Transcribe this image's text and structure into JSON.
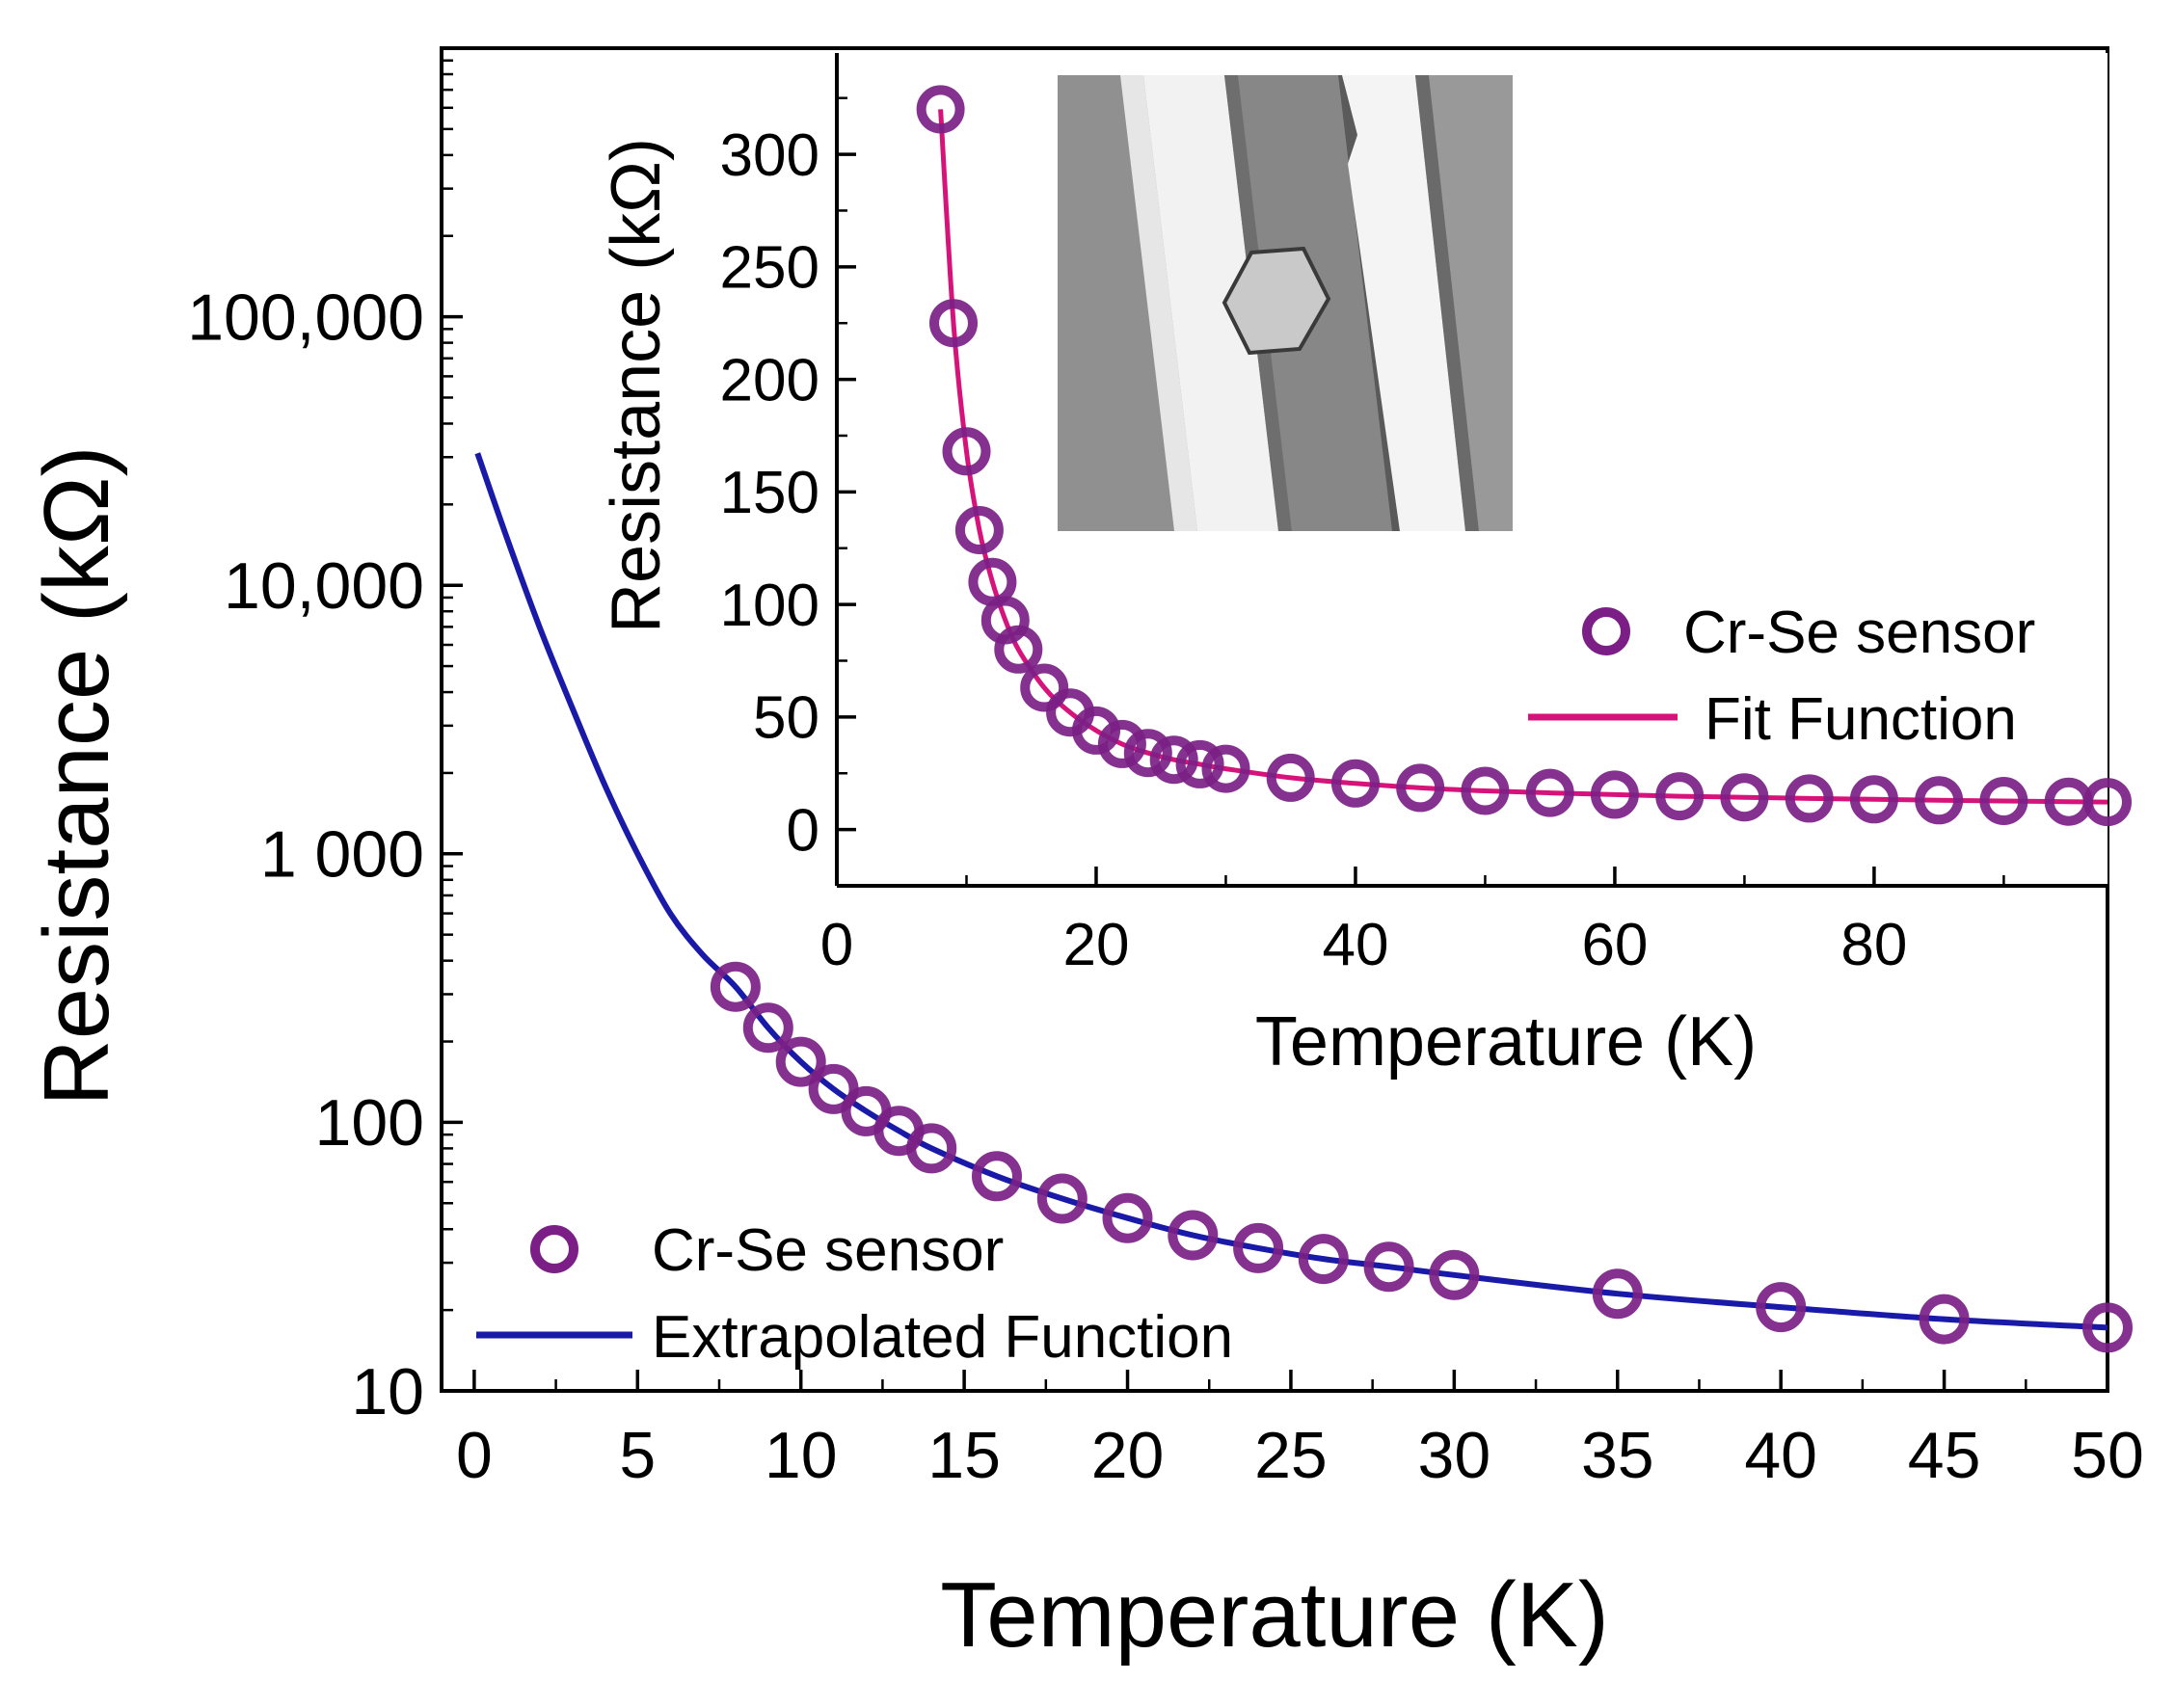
{
  "chart_data": [
    {
      "id": "main",
      "type": "scatter",
      "title": "",
      "xlabel": "Temperature (K)",
      "ylabel": "Resistance (kΩ)",
      "xscale": "linear",
      "yscale": "log",
      "xlim": [
        -1,
        50
      ],
      "ylim": [
        10,
        1000000
      ],
      "xticks": [
        0,
        5,
        10,
        15,
        20,
        25,
        30,
        35,
        40,
        45,
        50
      ],
      "xtick_labels": [
        "0",
        "5",
        "10",
        "15",
        "20",
        "25",
        "30",
        "35",
        "40",
        "45",
        "50"
      ],
      "yticks": [
        10,
        100,
        1000,
        10000,
        100000
      ],
      "ytick_labels": [
        "10",
        "100",
        "1 000",
        "10,000",
        "100,000"
      ],
      "legend_position": "bottom-left",
      "series": [
        {
          "name": "Cr-Se sensor",
          "kind": "markers",
          "marker": "open-circle",
          "color": "#7b1f86",
          "x": [
            8,
            9,
            10,
            11,
            12,
            13,
            14,
            16,
            18,
            20,
            22,
            24,
            26,
            28,
            30,
            35,
            40,
            45,
            50
          ],
          "y": [
            320,
            225,
            168,
            133,
            110,
            93,
            80,
            63,
            52,
            44,
            38,
            34,
            31,
            29,
            27,
            23,
            20.5,
            18.5,
            17.2
          ]
        },
        {
          "name": "Extrapolated Function",
          "kind": "line",
          "color": "#1a1aa8",
          "x": [
            0.1,
            1,
            2,
            3,
            4,
            5,
            6,
            7,
            8,
            9,
            10,
            11,
            12,
            13,
            14,
            16,
            18,
            20,
            22,
            24,
            26,
            28,
            30,
            35,
            40,
            45,
            50
          ],
          "y": [
            31000,
            15000,
            7000,
            3500,
            1800,
            1000,
            600,
            420,
            320,
            225,
            168,
            133,
            110,
            93,
            80,
            63,
            52,
            44,
            38,
            34,
            31,
            29,
            27,
            23,
            20.5,
            18.5,
            17.2
          ]
        }
      ]
    },
    {
      "id": "inset",
      "type": "scatter",
      "title": "",
      "xlabel": "Temperature (K)",
      "ylabel": "Resistance (kΩ)",
      "xscale": "linear",
      "yscale": "linear",
      "xlim": [
        0,
        98
      ],
      "ylim": [
        -25,
        345
      ],
      "xticks": [
        0,
        20,
        40,
        60,
        80
      ],
      "xtick_labels": [
        "0",
        "20",
        "40",
        "60",
        "80"
      ],
      "yticks": [
        0,
        50,
        100,
        150,
        200,
        250,
        300
      ],
      "ytick_labels": [
        "0",
        "50",
        "100",
        "150",
        "200",
        "250",
        "300"
      ],
      "legend_position": "middle-right",
      "series": [
        {
          "name": "Cr-Se sensor",
          "kind": "markers",
          "marker": "open-circle",
          "color": "#7b1f86",
          "x": [
            8,
            9,
            10,
            11,
            12,
            13,
            14,
            16,
            18,
            20,
            22,
            24,
            26,
            28,
            30,
            35,
            40,
            45,
            50,
            55,
            60,
            65,
            70,
            75,
            80,
            85,
            90,
            95,
            98
          ],
          "y": [
            320,
            225,
            168,
            133,
            110,
            93,
            80,
            63,
            52,
            44,
            38,
            34,
            31,
            29,
            27,
            23,
            20.5,
            18.5,
            17.2,
            16.3,
            15.5,
            14.8,
            14.3,
            13.8,
            13.4,
            13,
            12.7,
            12.4,
            12.2
          ]
        },
        {
          "name": "Fit Function",
          "kind": "line",
          "color": "#d6137a",
          "x": [
            8,
            9,
            10,
            11,
            12,
            13,
            14,
            16,
            18,
            20,
            22,
            24,
            26,
            28,
            30,
            35,
            40,
            45,
            50,
            55,
            60,
            65,
            70,
            75,
            80,
            85,
            90,
            95,
            98
          ],
          "y": [
            320,
            225,
            168,
            133,
            110,
            93,
            80,
            63,
            52,
            44,
            38,
            34,
            31,
            29,
            27,
            23,
            20.5,
            18.5,
            17.2,
            16.3,
            15.5,
            14.8,
            14.3,
            13.8,
            13.4,
            13,
            12.7,
            12.4,
            12.2
          ]
        }
      ]
    }
  ]
}
